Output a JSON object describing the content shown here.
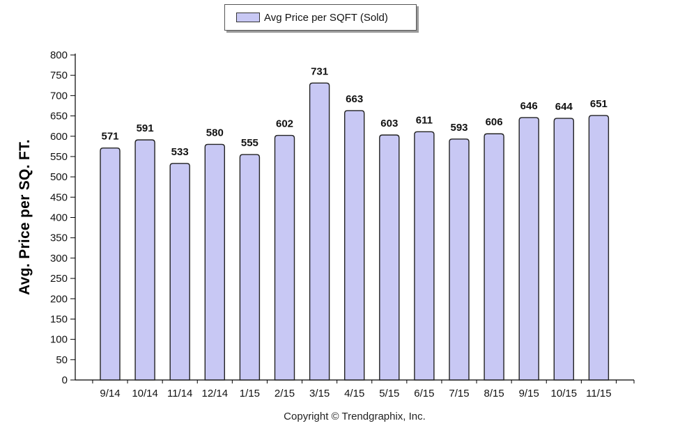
{
  "legend": {
    "label": "Avg Price per SQFT (Sold)"
  },
  "copyright": "Copyright © Trendgraphix, Inc.",
  "chart_data": {
    "type": "bar",
    "title": "",
    "xlabel": "",
    "ylabel": "Avg. Price per SQ. FT.",
    "categories": [
      "9/14",
      "10/14",
      "11/14",
      "12/14",
      "1/15",
      "2/15",
      "3/15",
      "4/15",
      "5/15",
      "6/15",
      "7/15",
      "8/15",
      "9/15",
      "10/15",
      "11/15"
    ],
    "series": [
      {
        "name": "Avg Price per SQFT (Sold)",
        "values": [
          571,
          591,
          533,
          580,
          555,
          602,
          731,
          663,
          603,
          611,
          593,
          606,
          646,
          644,
          651
        ]
      }
    ],
    "ylim": [
      0,
      800
    ],
    "ytick_step": 50,
    "data_labels": true,
    "legend_position": "top-center",
    "grid": false,
    "bar_color": "#c8c8f4"
  }
}
